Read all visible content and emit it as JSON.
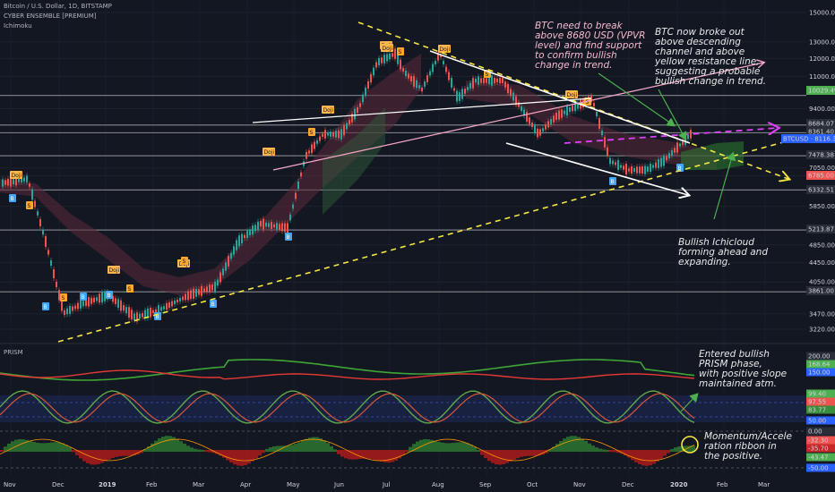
{
  "header": {
    "symbol_line": "Bitcoin / U.S. Dollar, 1D, BITSTAMP",
    "indicator_1": "CYBER ENSEMBLE [PREMIUM]",
    "indicator_2": "Ichimoku",
    "prism_label": "PRISM"
  },
  "annotations": {
    "break_note": "BTC need to break\nabove 8680 USD (VPVR\nlevel) and find support\nto confirm bullish\nchange in trend.",
    "breakout_note": "BTC now broke out\nabove descending\nchannel and above\nyellow resistance line,\nsuggesting a probable\nbullish change in trend.",
    "cloud_note": "Bullish Ichicloud\nforming ahead and\nexpanding.",
    "prism_note": "Entered bullish\nPRISM phase,\nwith positive slope\nmaintained atm.",
    "momentum_note": "Momentum/Accele\nration ribbon in\nthe positive."
  },
  "colors": {
    "background": "#131722",
    "annotation_pink": "#f8bbd0",
    "annotation_white": "#e8e8e8",
    "trend_yellow": "#f5e642",
    "trend_white": "#ffffff",
    "trend_pink": "#f7a8c8",
    "dash_magenta": "#e040fb",
    "arrow_green": "#4caf50",
    "current_price_badge": "#2962ff"
  },
  "chart_data": {
    "type": "candlestick",
    "symbol": "BTCUSD",
    "timeframe": "1D",
    "exchange": "BITSTAMP",
    "y_scale": "log",
    "x_tick_labels": [
      "Nov",
      "Dec",
      "2019",
      "Feb",
      "Mar",
      "Apr",
      "May",
      "Jun",
      "Jul",
      "Aug",
      "Sep",
      "Oct",
      "Nov",
      "Dec",
      "2020",
      "Feb",
      "Mar"
    ],
    "y_tick_labels": [
      "15000.00",
      "13000.00",
      "12000.00",
      "11000.00",
      "9400.00",
      "8680.00",
      "8361.40",
      "7478.38",
      "7050.00",
      "6785.00",
      "6332.51",
      "5850.00",
      "5213.87",
      "4850.00",
      "4450.00",
      "4050.00",
      "3861.00",
      "3470.00",
      "3220.00"
    ],
    "price_labels": [
      {
        "value": "10029.49",
        "color": "#4caf50"
      },
      {
        "value": "8684.07",
        "color": "#2a2e39"
      },
      {
        "value": "8361.40",
        "color": "#2a2e39"
      },
      {
        "value": "BTCUSD · 8116.33",
        "color": "#2962ff"
      },
      {
        "value": "7478.38",
        "color": "#2a2e39"
      },
      {
        "value": "6785.00",
        "color": "#ef5350"
      },
      {
        "value": "6332.51",
        "color": "#2a2e39"
      },
      {
        "value": "5213.87",
        "color": "#2a2e39"
      },
      {
        "value": "3861.00",
        "color": "#2a2e39"
      }
    ],
    "horizontal_levels": [
      10029.49,
      8684.07,
      8361.4,
      7478.38,
      6332.51,
      5213.87,
      3861.0
    ],
    "markers": {
      "doji": [
        "Doji",
        "Doji",
        "Doji",
        "Doji",
        "Doji",
        "Doji",
        "Doji",
        "Doji",
        "Doji"
      ],
      "b": [
        "B",
        "B",
        "B",
        "B",
        "B",
        "B",
        "B",
        "B",
        "B"
      ],
      "s": [
        "S",
        "S",
        "S",
        "S",
        "S",
        "S",
        "S",
        "S"
      ]
    },
    "prism_panel": {
      "labels": [
        {
          "value": "200.00",
          "color": "#2a2e39"
        },
        {
          "value": "168.64",
          "color": "#4caf50"
        },
        {
          "value": "150.00",
          "color": "#2962ff"
        },
        {
          "value": "99.40",
          "color": "#4caf50"
        },
        {
          "value": "97.55",
          "color": "#ef5350"
        },
        {
          "value": "83.77",
          "color": "#388e3c"
        },
        {
          "value": "50.00",
          "color": "#2962ff"
        },
        {
          "value": "0.00",
          "color": "#2a2e39"
        },
        {
          "value": "-32.30",
          "color": "#ef5350"
        },
        {
          "value": "-35.70",
          "color": "#c62828"
        },
        {
          "value": "-43.47",
          "color": "#4caf50"
        },
        {
          "value": "-50.00",
          "color": "#2962ff"
        }
      ]
    }
  }
}
